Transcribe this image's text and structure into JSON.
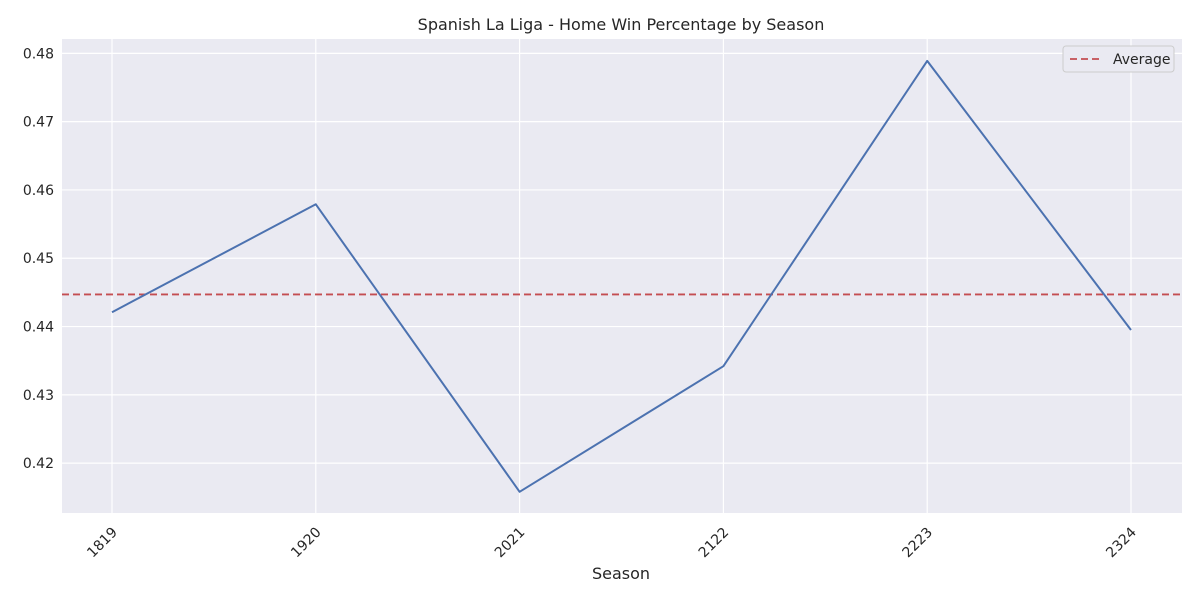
{
  "chart_data": {
    "type": "line",
    "title": "Spanish La Liga - Home Win Percentage by Season",
    "xlabel": "Season",
    "ylabel": "",
    "categories": [
      "1819",
      "1920",
      "2021",
      "2122",
      "2223",
      "2324"
    ],
    "series": [
      {
        "values": [
          0.4421,
          0.4579,
          0.4158,
          0.4342,
          0.4789,
          0.4395
        ],
        "color": "#4c72b0"
      }
    ],
    "reference_line": {
      "name": "Average",
      "value": 0.4447,
      "color": "#c44e52",
      "style": "dashed"
    },
    "yticks": [
      0.42,
      0.43,
      0.44,
      0.45,
      0.46,
      0.47,
      0.48
    ],
    "ytick_labels": [
      "0.42",
      "0.43",
      "0.44",
      "0.45",
      "0.46",
      "0.47",
      "0.48"
    ],
    "ylim": [
      0.4127,
      0.4821
    ],
    "grid": true,
    "legend_position": "top-right",
    "colors": {
      "plot_background": "#eaeaf2",
      "grid": "#ffffff"
    }
  }
}
